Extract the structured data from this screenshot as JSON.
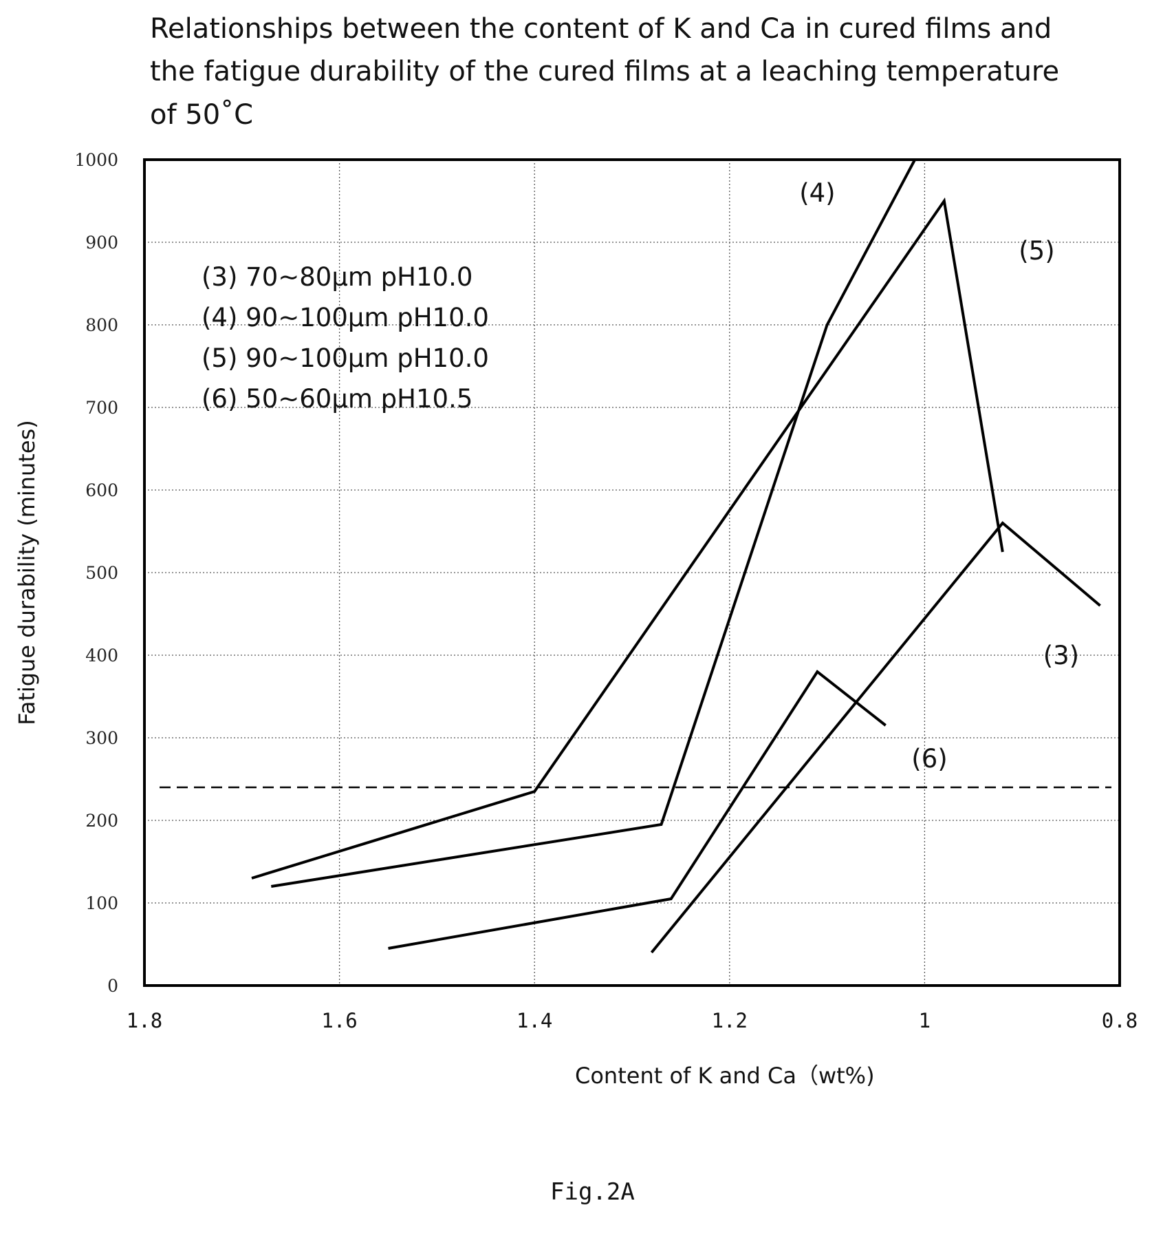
{
  "chart_data": {
    "type": "line",
    "title_lines": [
      "Relationships between the content of K and Ca in cured films and",
      "the fatigue durability of the cured films at a leaching temperature",
      "of 50˚C"
    ],
    "xlabel": "Content of K and Ca（wt%)",
    "ylabel": "Fatigue durability (minutes)",
    "xlim": [
      1.8,
      0.8
    ],
    "ylim": [
      0,
      1000
    ],
    "x_reversed": true,
    "x_ticks": [
      1.8,
      1.6,
      1.4,
      1.2,
      1,
      0.8
    ],
    "x_tick_labels": [
      "1.8",
      "1.6",
      "1.4",
      "1.2",
      "1",
      "0.8"
    ],
    "y_ticks": [
      0,
      100,
      200,
      300,
      400,
      500,
      600,
      700,
      800,
      900,
      1000
    ],
    "y_tick_labels": [
      "0",
      "100",
      "200",
      "300",
      "400",
      "500",
      "600",
      "700",
      "800",
      "900",
      "1000"
    ],
    "grid": true,
    "reference_line_y": 240,
    "legend": [
      "(3) 70~80μm pH10.0",
      "(4) 90~100μm pH10.0",
      "(5) 90~100μm pH10.0",
      "(6) 50~60μm pH10.5"
    ],
    "series": [
      {
        "name": "(3)",
        "label": "(3)",
        "label_at": [
          0.86,
          400
        ],
        "x": [
          1.28,
          1.1,
          0.92,
          0.82
        ],
        "y": [
          40,
          300,
          560,
          460
        ]
      },
      {
        "name": "(4)",
        "label": "(4)",
        "label_at": [
          1.11,
          960
        ],
        "x": [
          1.67,
          1.27,
          1.1,
          1.01
        ],
        "y": [
          120,
          195,
          800,
          1000
        ]
      },
      {
        "name": "(5)",
        "label": "(5)",
        "label_at": [
          0.885,
          890
        ],
        "x": [
          1.69,
          1.4,
          0.98,
          0.92
        ],
        "y": [
          130,
          235,
          950,
          525
        ]
      },
      {
        "name": "(6)",
        "label": "(6)",
        "label_at": [
          0.995,
          275
        ],
        "x": [
          1.55,
          1.26,
          1.11,
          1.04
        ],
        "y": [
          45,
          105,
          380,
          315
        ]
      }
    ],
    "caption": "Fig.2A"
  },
  "colors": {
    "line": "#000000",
    "grid": "#555555",
    "background": "#ffffff"
  }
}
